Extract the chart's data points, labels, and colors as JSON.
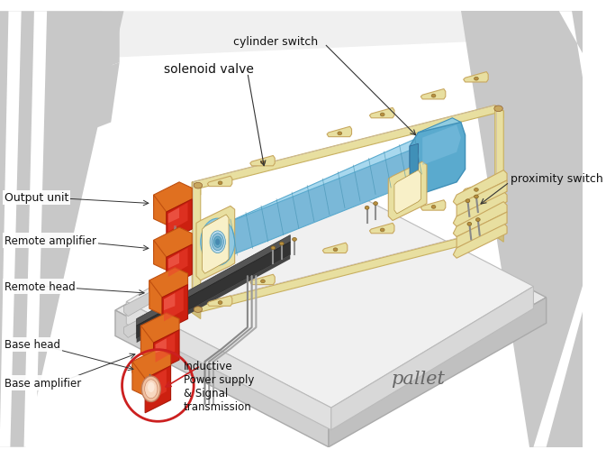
{
  "bg_color": "#ffffff",
  "pallet_text": "pallet",
  "labels": {
    "cylinder_switch": "cylinder switch",
    "solenoid_valve": "solenoid valve",
    "proximity_switch": "proximity switch",
    "output_unit": "Output unit",
    "remote_amplifier": "Remote amplifier",
    "remote_head": "Remote head",
    "base_head": "Base head",
    "base_amplifier": "Base amplifier",
    "inductive": "Inductive\nPower supply\n& Signal\ntransmission"
  },
  "figsize": [
    6.83,
    5.1
  ],
  "dpi": 100
}
